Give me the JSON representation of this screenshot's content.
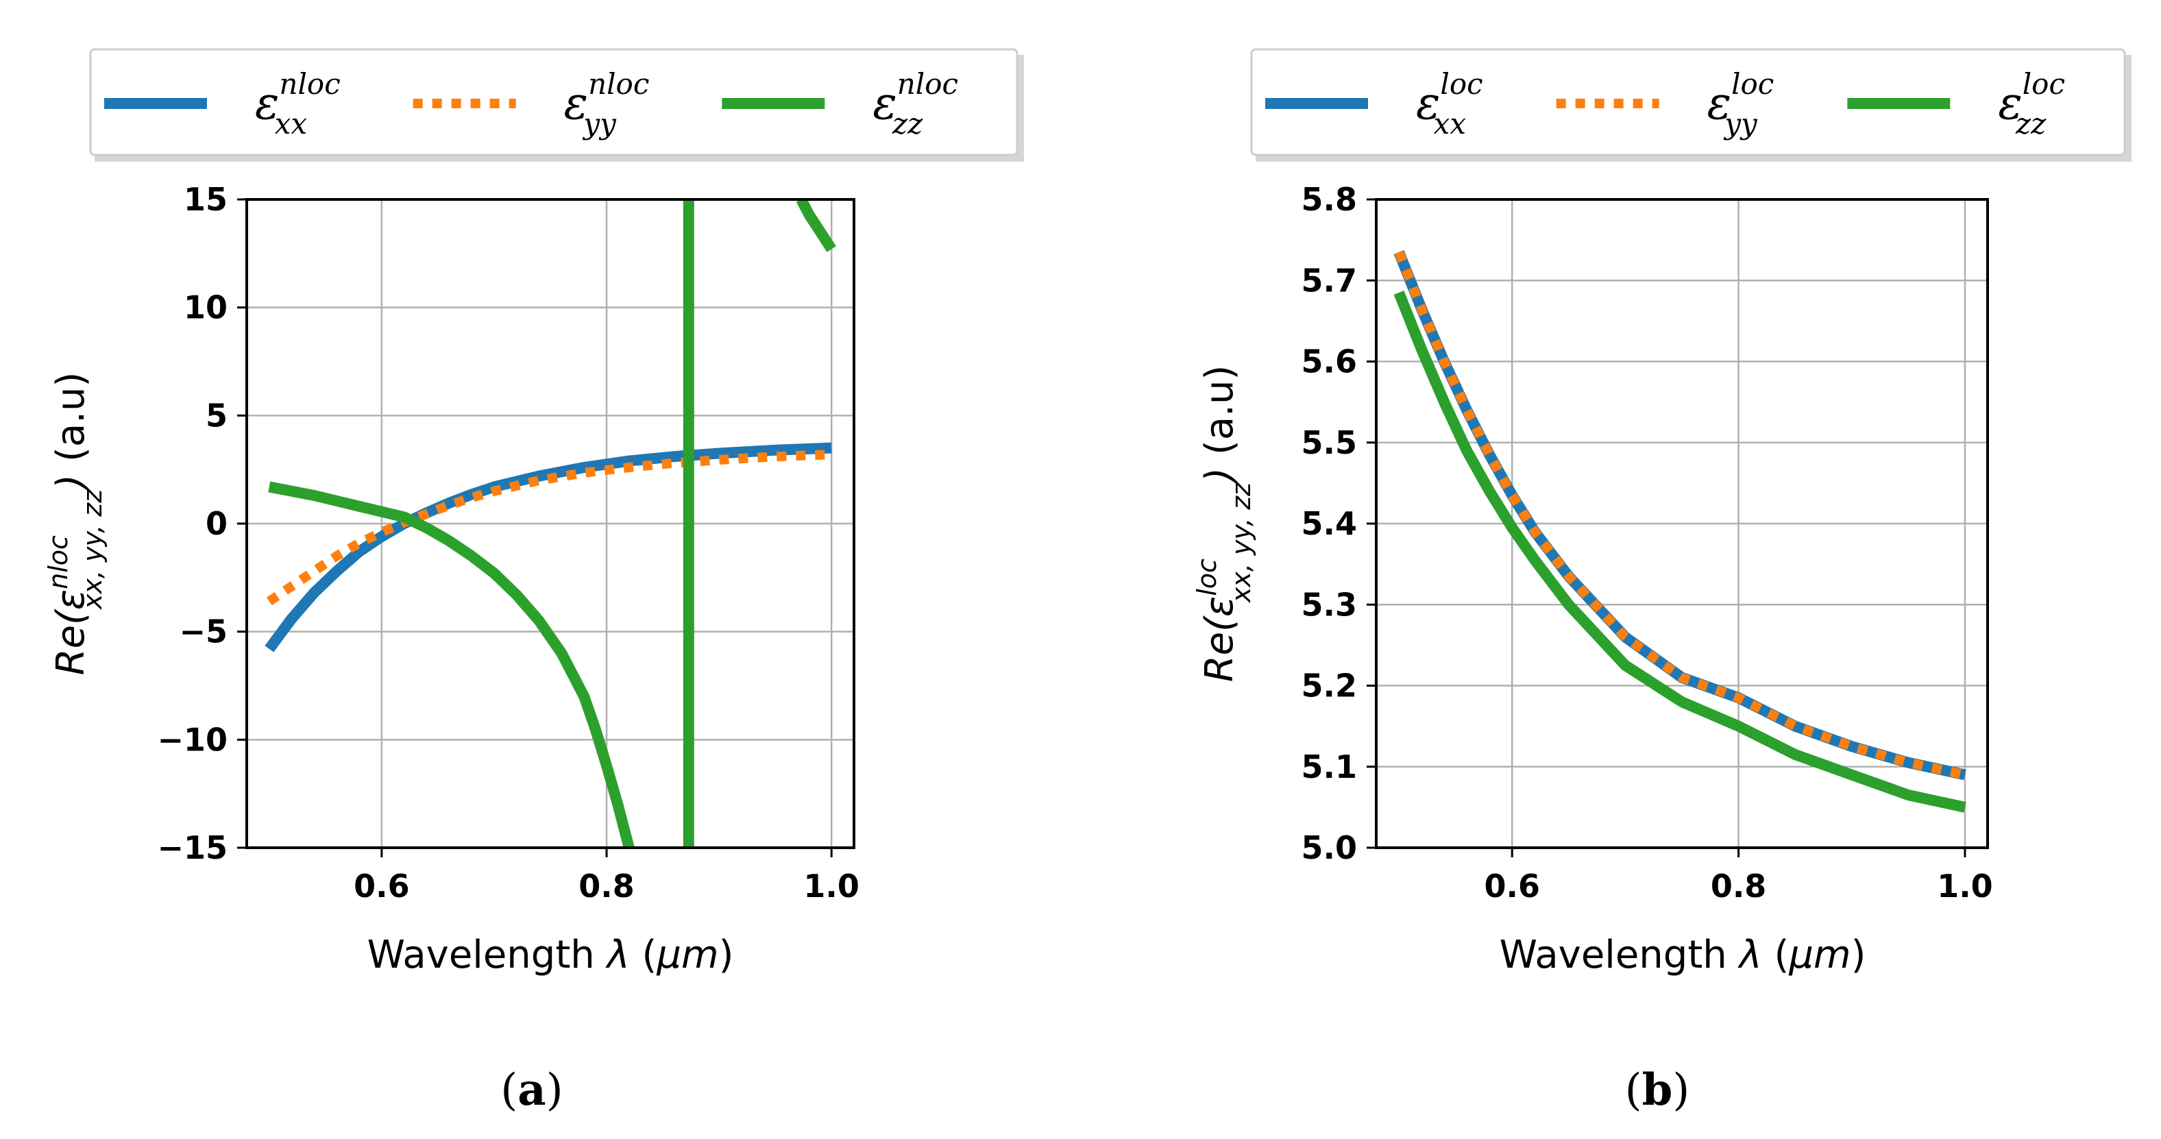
{
  "figure": {
    "caption_a": "a",
    "caption_b": "b"
  },
  "chart_data": [
    {
      "type": "line",
      "panel": "a",
      "xlabel_text": "Wavelength ",
      "xlabel_symbol": "λ",
      "xlabel_unit": "μm",
      "ylabel_base": "Re(",
      "ylabel_eps": "ε",
      "ylabel_sup": "nloc",
      "ylabel_sub": "xx, yy, zz",
      "ylabel_close": ")",
      "ylabel_unit": "(a.u)",
      "xlim": [
        0.48,
        1.02
      ],
      "ylim": [
        -15,
        15
      ],
      "xticks": [
        0.6,
        0.8,
        1.0
      ],
      "xtick_labels": [
        "0.6",
        "0.8",
        "1.0"
      ],
      "yticks": [
        -15,
        -10,
        -5,
        0,
        5,
        10,
        15
      ],
      "ytick_labels": [
        "−15",
        "−10",
        "−5",
        "0",
        "5",
        "10",
        "15"
      ],
      "grid": true,
      "legend_location": "above",
      "series": [
        {
          "name": "eps_xx_nloc",
          "symbol": "ε",
          "sup": "nloc",
          "sub": "xx",
          "color": "#1f77b4",
          "style": "solid",
          "x": [
            0.5,
            0.52,
            0.54,
            0.56,
            0.58,
            0.6,
            0.62,
            0.64,
            0.66,
            0.68,
            0.7,
            0.74,
            0.78,
            0.82,
            0.86,
            0.9,
            0.95,
            1.0
          ],
          "y": [
            -5.8,
            -4.4,
            -3.2,
            -2.2,
            -1.3,
            -0.6,
            0.0,
            0.5,
            0.95,
            1.35,
            1.7,
            2.2,
            2.6,
            2.9,
            3.1,
            3.25,
            3.4,
            3.5
          ]
        },
        {
          "name": "eps_yy_nloc",
          "symbol": "ε",
          "sup": "nloc",
          "sub": "yy",
          "color": "#ff7f0e",
          "style": "dotted",
          "x": [
            0.5,
            0.52,
            0.54,
            0.56,
            0.58,
            0.6,
            0.62,
            0.64,
            0.66,
            0.68,
            0.7,
            0.74,
            0.78,
            0.82,
            0.86,
            0.9,
            0.95,
            1.0
          ],
          "y": [
            -3.6,
            -2.9,
            -2.2,
            -1.5,
            -0.9,
            -0.4,
            0.05,
            0.45,
            0.85,
            1.2,
            1.5,
            2.0,
            2.35,
            2.6,
            2.8,
            2.95,
            3.1,
            3.2
          ]
        },
        {
          "name": "eps_zz_nloc",
          "symbol": "ε",
          "sup": "nloc",
          "sub": "zz",
          "color": "#2ca02c",
          "style": "solid",
          "segments": [
            {
              "x": [
                0.5,
                0.54,
                0.58,
                0.62,
                0.64,
                0.66,
                0.68,
                0.7,
                0.72,
                0.74,
                0.76,
                0.78,
                0.79,
                0.8,
                0.81,
                0.815,
                0.82
              ],
              "y": [
                1.7,
                1.3,
                0.8,
                0.3,
                -0.2,
                -0.8,
                -1.5,
                -2.3,
                -3.3,
                -4.5,
                -6.0,
                -8.0,
                -9.5,
                -11.2,
                -13.0,
                -14.0,
                -15
              ]
            },
            {
              "x": [
                0.873,
                0.873
              ],
              "y": [
                -15,
                15
              ]
            },
            {
              "x": [
                0.973,
                0.98,
                0.99,
                1.0
              ],
              "y": [
                15,
                14.3,
                13.5,
                12.7
              ]
            }
          ]
        }
      ]
    },
    {
      "type": "line",
      "panel": "b",
      "xlabel_text": "Wavelength ",
      "xlabel_symbol": "λ",
      "xlabel_unit": "μm",
      "ylabel_base": "Re(",
      "ylabel_eps": "ε",
      "ylabel_sup": "loc",
      "ylabel_sub": "xx, yy, zz",
      "ylabel_close": ")",
      "ylabel_unit": "(a.u)",
      "xlim": [
        0.48,
        1.02
      ],
      "ylim": [
        5.0,
        5.8
      ],
      "xticks": [
        0.6,
        0.8,
        1.0
      ],
      "xtick_labels": [
        "0.6",
        "0.8",
        "1.0"
      ],
      "yticks": [
        5.0,
        5.1,
        5.2,
        5.3,
        5.4,
        5.5,
        5.6,
        5.7,
        5.8
      ],
      "ytick_labels": [
        "5.0",
        "5.1",
        "5.2",
        "5.3",
        "5.4",
        "5.5",
        "5.6",
        "5.7",
        "5.8"
      ],
      "grid": true,
      "legend_location": "above",
      "series": [
        {
          "name": "eps_xx_loc",
          "symbol": "ε",
          "sup": "loc",
          "sub": "xx",
          "color": "#1f77b4",
          "style": "solid",
          "x": [
            0.5,
            0.52,
            0.54,
            0.56,
            0.58,
            0.6,
            0.62,
            0.65,
            0.7,
            0.75,
            0.8,
            0.85,
            0.9,
            0.95,
            1.0
          ],
          "y": [
            5.735,
            5.665,
            5.6,
            5.54,
            5.485,
            5.435,
            5.39,
            5.335,
            5.26,
            5.21,
            5.185,
            5.15,
            5.125,
            5.105,
            5.09
          ]
        },
        {
          "name": "eps_yy_loc",
          "symbol": "ε",
          "sup": "loc",
          "sub": "yy",
          "color": "#ff7f0e",
          "style": "dotted",
          "x": [
            0.5,
            0.52,
            0.54,
            0.56,
            0.58,
            0.6,
            0.62,
            0.65,
            0.7,
            0.75,
            0.8,
            0.85,
            0.9,
            0.95,
            1.0
          ],
          "y": [
            5.735,
            5.665,
            5.6,
            5.54,
            5.485,
            5.435,
            5.39,
            5.335,
            5.26,
            5.21,
            5.185,
            5.15,
            5.125,
            5.105,
            5.09
          ]
        },
        {
          "name": "eps_zz_loc",
          "symbol": "ε",
          "sup": "loc",
          "sub": "zz",
          "color": "#2ca02c",
          "style": "solid",
          "x": [
            0.5,
            0.52,
            0.54,
            0.56,
            0.58,
            0.6,
            0.62,
            0.65,
            0.7,
            0.75,
            0.8,
            0.85,
            0.9,
            0.95,
            1.0
          ],
          "y": [
            5.685,
            5.615,
            5.55,
            5.49,
            5.44,
            5.395,
            5.355,
            5.3,
            5.225,
            5.18,
            5.15,
            5.115,
            5.09,
            5.065,
            5.05
          ]
        }
      ]
    }
  ]
}
